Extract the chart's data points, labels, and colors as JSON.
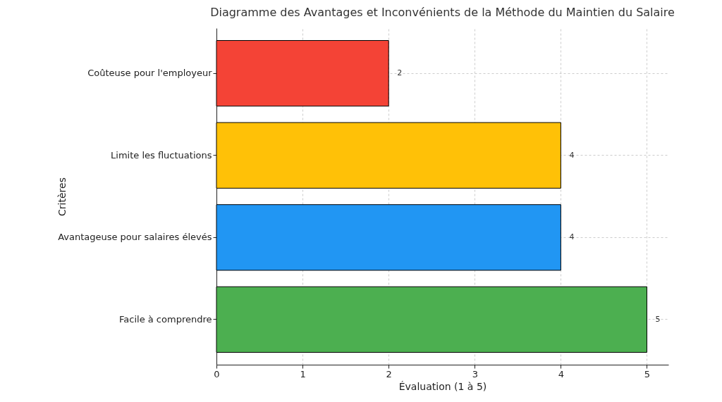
{
  "chart_data": {
    "type": "bar",
    "orientation": "horizontal",
    "title": "Diagramme des Avantages et Inconvénients de la Méthode du Maintien du Salaire",
    "xlabel": "Évaluation (1 à 5)",
    "ylabel": "Critères",
    "categories": [
      "Coûteuse pour l'employeur",
      "Limite les fluctuations",
      "Avantageuse pour salaires élevés",
      "Facile à comprendre"
    ],
    "values": [
      2,
      4,
      4,
      5
    ],
    "colors": [
      "#f44336",
      "#ffc107",
      "#2196f3",
      "#4caf50"
    ],
    "xlim": [
      0,
      5.25
    ],
    "xticks": [
      0,
      1,
      2,
      3,
      4,
      5
    ],
    "grid": true,
    "data_labels": true
  }
}
